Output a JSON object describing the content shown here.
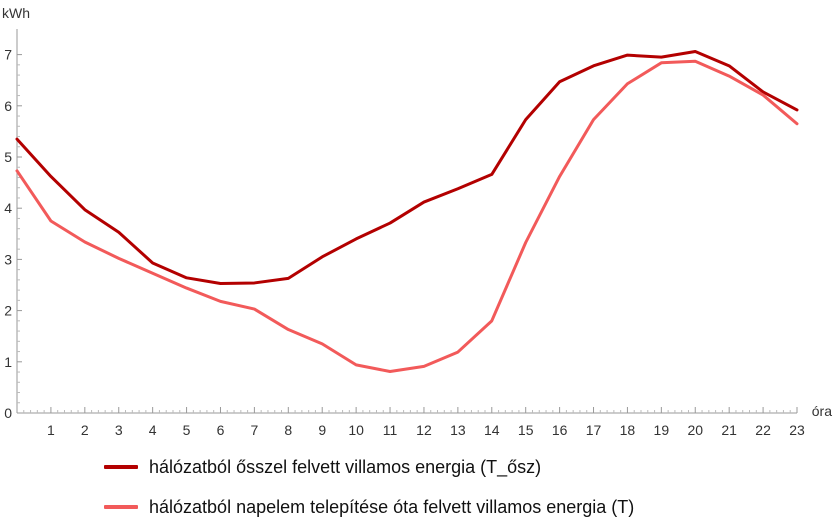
{
  "chart_data": {
    "type": "line",
    "title": "",
    "xlabel": "óra",
    "ylabel": "kWh",
    "xlim": [
      0,
      23
    ],
    "ylim": [
      0,
      7.5
    ],
    "x": [
      0,
      1,
      2,
      3,
      4,
      5,
      6,
      7,
      8,
      9,
      10,
      11,
      12,
      13,
      14,
      15,
      16,
      17,
      18,
      19,
      20,
      21,
      22,
      23
    ],
    "xticks": [
      "1",
      "2",
      "3",
      "4",
      "5",
      "6",
      "7",
      "8",
      "9",
      "10",
      "11",
      "12",
      "13",
      "14",
      "15",
      "16",
      "17",
      "18",
      "19",
      "20",
      "21",
      "22",
      "23"
    ],
    "yticks": [
      "0",
      "1",
      "2",
      "3",
      "4",
      "5",
      "6",
      "7"
    ],
    "grid": false,
    "legend_position": "bottom",
    "series": [
      {
        "name": "hálózatból ősszel felvett villamos energia (T_ősz)",
        "color": "#b30000",
        "values": [
          5.35,
          4.62,
          3.97,
          3.53,
          2.93,
          2.64,
          2.53,
          2.54,
          2.63,
          3.05,
          3.4,
          3.71,
          4.12,
          4.38,
          4.66,
          5.73,
          6.47,
          6.78,
          6.99,
          6.95,
          7.06,
          6.78,
          6.27,
          5.92
        ]
      },
      {
        "name": "hálózatból napelem telepítése óta felvett villamos energia (T)",
        "color": "#f25a5a",
        "values": [
          4.73,
          3.75,
          3.34,
          3.02,
          2.73,
          2.44,
          2.18,
          2.03,
          1.63,
          1.35,
          0.94,
          0.81,
          0.91,
          1.19,
          1.8,
          3.33,
          4.62,
          5.73,
          6.43,
          6.84,
          6.87,
          6.58,
          6.21,
          5.65
        ]
      }
    ]
  }
}
